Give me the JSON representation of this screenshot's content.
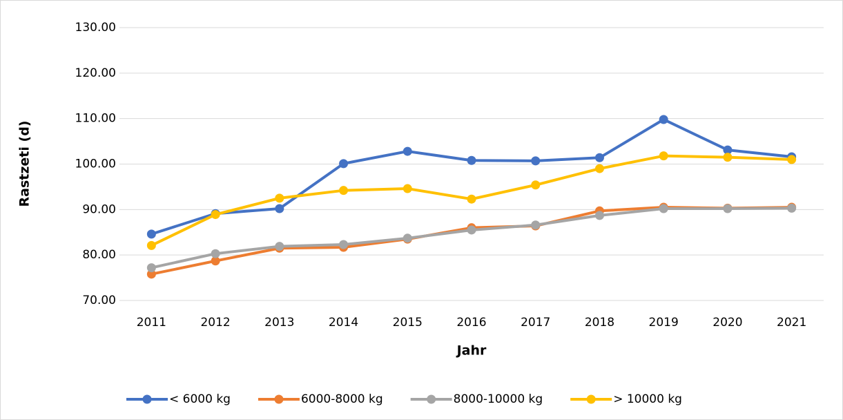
{
  "chart_data": {
    "type": "line",
    "y_label": "Rastzeti (d)",
    "x_label": "Jahr",
    "categories": [
      "2011",
      "2012",
      "2013",
      "2014",
      "2015",
      "2016",
      "2017",
      "2018",
      "2019",
      "2020",
      "2021"
    ],
    "series": [
      {
        "name": "< 6000 kg",
        "color": "#4472c4",
        "values": [
          84.6,
          89.1,
          90.2,
          100.1,
          102.8,
          100.8,
          100.7,
          101.4,
          109.8,
          103.1,
          101.6
        ]
      },
      {
        "name": "6000-8000 kg",
        "color": "#ed7d31",
        "values": [
          75.8,
          78.7,
          81.5,
          81.7,
          83.5,
          86.0,
          86.4,
          89.7,
          90.5,
          90.3,
          90.5
        ]
      },
      {
        "name": "8000-10000 kg",
        "color": "#a5a5a5",
        "values": [
          77.2,
          80.3,
          81.9,
          82.3,
          83.7,
          85.5,
          86.6,
          88.7,
          90.2,
          90.2,
          90.3
        ]
      },
      {
        "name": "> 10000 kg",
        "color": "#ffc000",
        "values": [
          82.1,
          88.9,
          92.5,
          94.2,
          94.6,
          92.3,
          95.4,
          99.0,
          101.8,
          101.5,
          101.0
        ]
      }
    ],
    "ylim": [
      70,
      130
    ],
    "yticks": [
      {
        "value": 70,
        "label": "70.00"
      },
      {
        "value": 80,
        "label": "80.00"
      },
      {
        "value": 90,
        "label": "90.00"
      },
      {
        "value": 100,
        "label": "100.00"
      },
      {
        "value": 110,
        "label": "110.00"
      },
      {
        "value": 120,
        "label": "120.00"
      },
      {
        "value": 130,
        "label": "130.00"
      }
    ],
    "grid": true,
    "legend": "bottom"
  }
}
